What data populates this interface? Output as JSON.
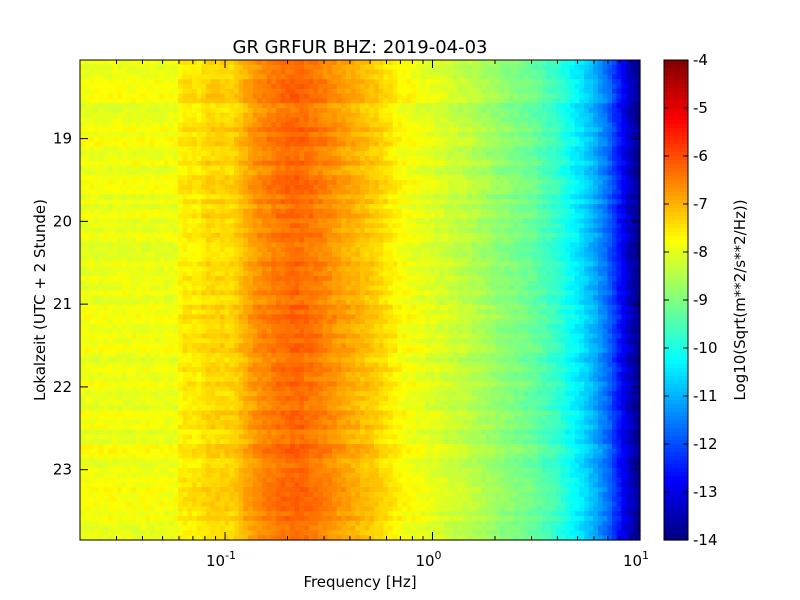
{
  "chart_data": {
    "type": "heatmap",
    "title": "GR GRFUR BHZ: 2019-04-03",
    "xlabel": "Frequency [Hz]",
    "ylabel": "Lokalzeit (UTC + 2 Stunde)",
    "x_scale": "log",
    "xlim": [
      0.02,
      10
    ],
    "ylim": [
      23.85,
      18.05
    ],
    "x_ticks": [
      {
        "value": 0.1,
        "base": "10",
        "exp": "-1"
      },
      {
        "value": 1,
        "base": "10",
        "exp": "0"
      },
      {
        "value": 10,
        "base": "10",
        "exp": "1"
      }
    ],
    "y_ticks": [
      {
        "value": 19,
        "label": "19"
      },
      {
        "value": 20,
        "label": "20"
      },
      {
        "value": 21,
        "label": "21"
      },
      {
        "value": 22,
        "label": "22"
      },
      {
        "value": 23,
        "label": "23"
      }
    ],
    "colorbar": {
      "label": "Log10(Sqrt(m**2/s**2/Hz))",
      "range": [
        -14,
        -4
      ],
      "ticks": [
        "-4",
        "-5",
        "-6",
        "-7",
        "-8",
        "-9",
        "-10",
        "-11",
        "-12",
        "-13",
        "-14"
      ],
      "colormap": "jet"
    },
    "spectrum_profile": {
      "frequency_hz": [
        0.02,
        0.04,
        0.058,
        0.062,
        0.075,
        0.082,
        0.11,
        0.13,
        0.15,
        0.18,
        0.22,
        0.28,
        0.35,
        0.45,
        0.55,
        0.7,
        1.0,
        1.5,
        2.0,
        3.0,
        4.0,
        5.0,
        6.0,
        7.0,
        8.0,
        9.0,
        10.0
      ],
      "level": [
        -7.9,
        -7.9,
        -7.9,
        -7.55,
        -7.55,
        -7.35,
        -7.35,
        -6.85,
        -6.6,
        -6.4,
        -6.25,
        -6.45,
        -6.75,
        -7.05,
        -7.3,
        -7.75,
        -8.05,
        -8.4,
        -8.75,
        -9.2,
        -9.75,
        -10.4,
        -11.0,
        -11.7,
        -12.6,
        -13.4,
        -13.9
      ]
    }
  }
}
